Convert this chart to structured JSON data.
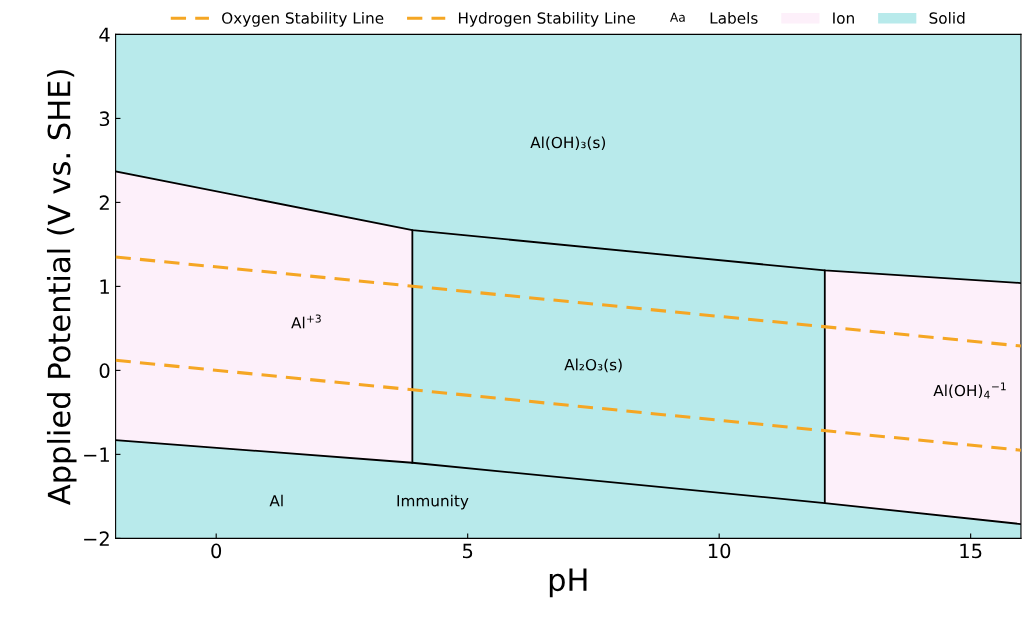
{
  "chart_data": {
    "type": "line",
    "xlabel": "pH",
    "ylabel": "Applied Potential (V vs. SHE)",
    "xlim": [
      -2,
      16
    ],
    "xticks": [
      0,
      5,
      10,
      15
    ],
    "ylim": [
      -2,
      4
    ],
    "yticks": [
      -2,
      -1,
      0,
      1,
      2,
      3,
      4
    ],
    "grid": false,
    "legend": "top",
    "series": [
      {
        "name": "Oxygen Stability Line",
        "line_style": "dashed",
        "color": "#f5a623",
        "x": [
          -2,
          16
        ],
        "values": [
          1.35,
          0.29
        ]
      },
      {
        "name": "Hydrogen Stability Line",
        "line_style": "dashed",
        "color": "#f5a623",
        "x": [
          -2,
          16
        ],
        "values": [
          0.12,
          -0.95
        ]
      },
      {
        "name": "Labels",
        "type": "other",
        "color": "#000000"
      },
      {
        "name": "Ion",
        "type": "other",
        "color": "#fdf0fa"
      },
      {
        "name": "Solid",
        "type": "other",
        "color": "#b8eaeb"
      },
      {
        "color": "#000000",
        "x": [
          -2,
          3.9,
          12.1,
          16
        ],
        "values": [
          2.37,
          1.67,
          1.19,
          1.04
        ]
      },
      {
        "color": "#000000",
        "x": [
          -2,
          3.9,
          12.1,
          16
        ],
        "values": [
          -0.83,
          -1.1,
          -1.58,
          -1.83
        ]
      },
      {
        "color": "#000000",
        "x": [
          3.9,
          3.9
        ],
        "values": [
          -1.1,
          1.67
        ]
      },
      {
        "color": "#000000",
        "x": [
          12.1,
          12.1
        ],
        "values": [
          -1.58,
          1.19
        ]
      }
    ],
    "annotations": [
      "Al(OH)₃(s)",
      "Al$^{+3}$",
      "Al₂O₃(s)",
      "Al(OH)$_{4}$$^{−1}$",
      "Al",
      "Immunity",
      "Aa"
    ]
  }
}
